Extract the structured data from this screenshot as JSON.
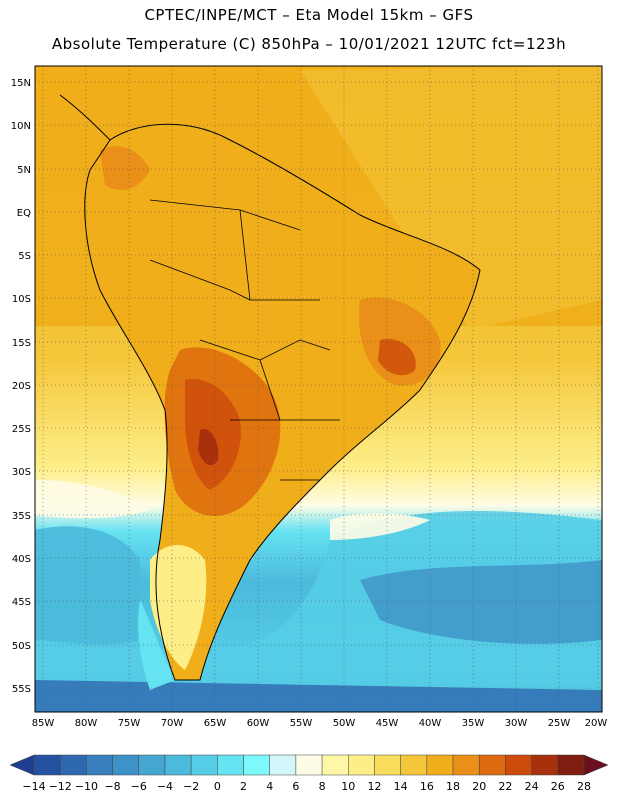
{
  "title_line1": "CPTEC/INPE/MCT –  Eta Model 15km – GFS",
  "title_line2": "Absolute Temperature (C) 850hPa – 10/01/2021 12UTC fct=123h",
  "lat_labels": [
    "15N",
    "10N",
    "5N",
    "EQ",
    "5S",
    "10S",
    "15S",
    "20S",
    "25S",
    "30S",
    "35S",
    "40S",
    "45S",
    "50S",
    "55S"
  ],
  "lon_labels": [
    "85W",
    "80W",
    "75W",
    "70W",
    "65W",
    "60W",
    "55W",
    "50W",
    "45W",
    "40W",
    "35W",
    "30W",
    "25W",
    "20W"
  ],
  "colorbar": {
    "labels": [
      "-14",
      "-12",
      "-10",
      "-8",
      "-6",
      "-4",
      "-2",
      "0",
      "2",
      "4",
      "6",
      "8",
      "10",
      "12",
      "14",
      "16",
      "18",
      "20",
      "22",
      "24",
      "26",
      "28"
    ],
    "colors": [
      "#1e3f8f",
      "#2452a0",
      "#2e68b0",
      "#3a7fbe",
      "#3f92c8",
      "#45a6d2",
      "#4bbadc",
      "#55cde6",
      "#66e3f2",
      "#7df8fb",
      "#d3f6fb",
      "#fffce6",
      "#fff7a8",
      "#fdee87",
      "#f9dd5c",
      "#f4c63a",
      "#f0ae1a",
      "#ea9018",
      "#dd6a0e",
      "#cc4a0a",
      "#a8300c",
      "#7e1d10",
      "#6b0f1e"
    ]
  }
}
